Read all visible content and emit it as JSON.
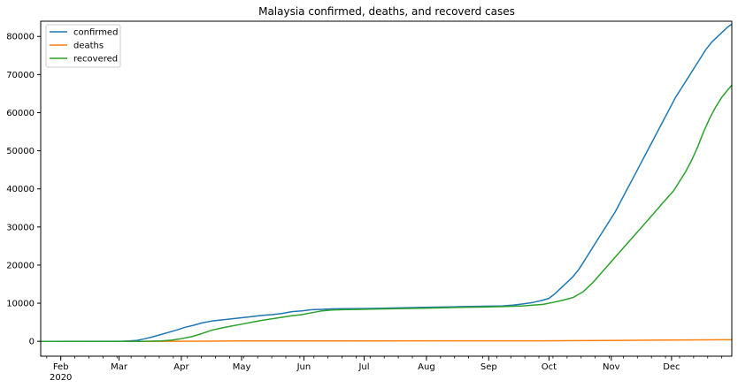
{
  "chart_data": {
    "type": "line",
    "title": "Malaysia confirmed, deaths, and recoverd cases",
    "xlabel": "",
    "ylabel": "",
    "ylim": [
      -3900,
      84000
    ],
    "xlim_days": [
      0,
      344
    ],
    "x_ticks": [
      {
        "day": 10,
        "label": "Feb",
        "sublabel": "2020"
      },
      {
        "day": 39,
        "label": "Mar"
      },
      {
        "day": 70,
        "label": "Apr"
      },
      {
        "day": 100,
        "label": "May"
      },
      {
        "day": 131,
        "label": "Jun"
      },
      {
        "day": 161,
        "label": "Jul"
      },
      {
        "day": 192,
        "label": "Aug"
      },
      {
        "day": 223,
        "label": "Sep"
      },
      {
        "day": 253,
        "label": "Oct"
      },
      {
        "day": 284,
        "label": "Nov"
      },
      {
        "day": 314,
        "label": "Dec"
      }
    ],
    "y_ticks": [
      0,
      10000,
      20000,
      30000,
      40000,
      50000,
      60000,
      70000,
      80000
    ],
    "y_tick_labels": [
      "0",
      "10000",
      "20000",
      "30000",
      "40000",
      "50000",
      "60000",
      "70000",
      "80000"
    ],
    "legend_position": "top-left",
    "series": [
      {
        "name": "confirmed",
        "color": "#1f77b4",
        "x": [
          0,
          40,
          44,
          48,
          52,
          56,
          60,
          64,
          68,
          72,
          76,
          80,
          85,
          90,
          95,
          100,
          105,
          110,
          115,
          120,
          125,
          130,
          135,
          140,
          145,
          150,
          160,
          170,
          180,
          190,
          200,
          210,
          220,
          230,
          235,
          240,
          245,
          250,
          253,
          256,
          259,
          262,
          265,
          268,
          271,
          274,
          277,
          280,
          283,
          286,
          289,
          292,
          295,
          298,
          301,
          304,
          307,
          310,
          313,
          316,
          319,
          322,
          325,
          328,
          331,
          334,
          337,
          340,
          342,
          344
        ],
        "values": [
          0,
          30,
          100,
          250,
          700,
          1200,
          1800,
          2400,
          3000,
          3700,
          4200,
          4800,
          5300,
          5600,
          5900,
          6200,
          6500,
          6800,
          7000,
          7300,
          7800,
          8000,
          8300,
          8400,
          8500,
          8550,
          8600,
          8700,
          8800,
          8900,
          9000,
          9100,
          9200,
          9300,
          9500,
          9800,
          10200,
          10800,
          11300,
          12500,
          14000,
          15500,
          17000,
          19000,
          21500,
          24000,
          26500,
          29000,
          31500,
          34000,
          37000,
          40000,
          43000,
          46000,
          49000,
          52000,
          55000,
          58000,
          61000,
          64000,
          66500,
          69000,
          71500,
          74000,
          76500,
          78500,
          80000,
          81500,
          82500,
          83200
        ]
      },
      {
        "name": "deaths",
        "color": "#ff7f0e",
        "x": [
          0,
          50,
          70,
          100,
          150,
          200,
          250,
          270,
          290,
          310,
          330,
          344
        ],
        "values": [
          0,
          0,
          30,
          100,
          120,
          125,
          130,
          180,
          250,
          320,
          380,
          420
        ]
      },
      {
        "name": "recovered",
        "color": "#2ca02c",
        "x": [
          0,
          50,
          60,
          65,
          70,
          75,
          80,
          85,
          90,
          95,
          100,
          105,
          110,
          115,
          120,
          125,
          130,
          135,
          140,
          145,
          150,
          160,
          170,
          180,
          190,
          200,
          210,
          220,
          230,
          240,
          250,
          255,
          260,
          265,
          270,
          275,
          280,
          285,
          290,
          295,
          300,
          305,
          310,
          315,
          318,
          321,
          324,
          327,
          330,
          333,
          336,
          339,
          342,
          344
        ],
        "values": [
          0,
          0,
          100,
          300,
          700,
          1200,
          2000,
          2900,
          3500,
          4000,
          4500,
          5000,
          5500,
          5900,
          6300,
          6700,
          7000,
          7500,
          8000,
          8200,
          8300,
          8400,
          8500,
          8600,
          8700,
          8800,
          8900,
          9000,
          9100,
          9300,
          9700,
          10200,
          10800,
          11500,
          13000,
          15500,
          18500,
          21500,
          24500,
          27500,
          30500,
          33500,
          36500,
          39500,
          42000,
          44500,
          47500,
          51000,
          55000,
          58500,
          61500,
          64000,
          66000,
          67200
        ]
      }
    ]
  }
}
